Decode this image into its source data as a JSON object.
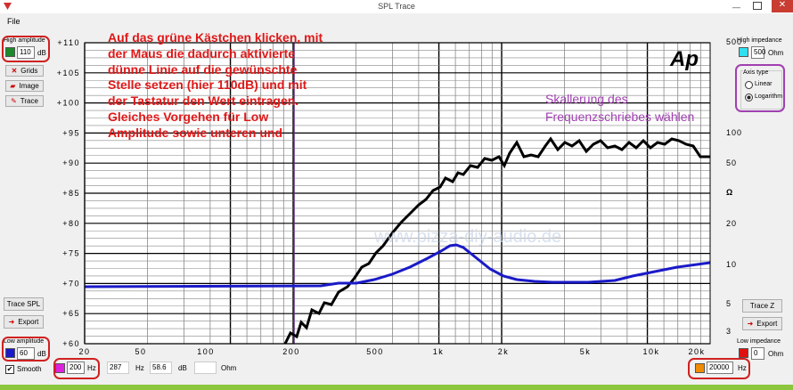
{
  "title_bar": {
    "title": "SPL Trace"
  },
  "menu": {
    "file": "File"
  },
  "left_panel": {
    "high_amplitude_label": "High amplitude",
    "high_amplitude_value": "110",
    "high_amplitude_unit": "dB",
    "grids_button": "Grids",
    "image_button": "Image",
    "trace_button": "Trace",
    "trace_spl_button": "Trace SPL",
    "export_button": "Export",
    "low_amplitude_label": "Low amplitude",
    "low_amplitude_value": "60",
    "low_amplitude_unit": "dB",
    "smooth_checkbox": "Smooth"
  },
  "plot": {
    "y_labels": [
      "+110",
      "+105",
      "+100",
      "+95",
      "+90",
      "+85",
      "+80",
      "+75",
      "+70",
      "+65",
      "+60"
    ],
    "x_labels": [
      "20",
      "50",
      "100",
      "200",
      "500",
      "1k",
      "2k",
      "5k",
      "10k",
      "20k"
    ],
    "impedance_labels": [
      "500",
      "100",
      "50",
      "Ω",
      "20",
      "10",
      "5",
      "3"
    ],
    "watermark": "www.pizza-diy-audio.de"
  },
  "annotations": {
    "red": [
      "Auf das grüne Kästchen klicken, mit",
      "der Maus die dadurch aktivierte",
      "dünne Linie auf die gewünschte",
      "Stelle setzen (hier 110dB) und mit",
      "der Tastatur den Wert eintragen.",
      "Gleiches Vorgehen für Low",
      "Amplitude sowie unteren und"
    ],
    "purple": [
      "Skallerung des",
      "Frequenzschriebes wählen"
    ]
  },
  "bottom_bar": {
    "low_freq_value": "200",
    "low_freq_unit": "Hz",
    "cursor_freq_value": "287",
    "cursor_freq_unit": "Hz",
    "cursor_db_value": "58.6",
    "cursor_db_unit": "dB",
    "cursor_ohm_unit": "Ohm",
    "high_freq_value": "20000",
    "high_freq_unit": "Hz"
  },
  "right_panel": {
    "high_impedance_label": "High impedance",
    "high_impedance_value": "500",
    "high_impedance_unit": "Ohm",
    "axis_type_label": "Axis type",
    "linear_option": "Linear",
    "logarithm_option": "Logarithm",
    "trace_z_button": "Trace Z",
    "export_button": "Export",
    "low_impedance_label": "Low impedance",
    "low_impedance_value": "0",
    "low_impedance_unit": "Ohm"
  }
}
